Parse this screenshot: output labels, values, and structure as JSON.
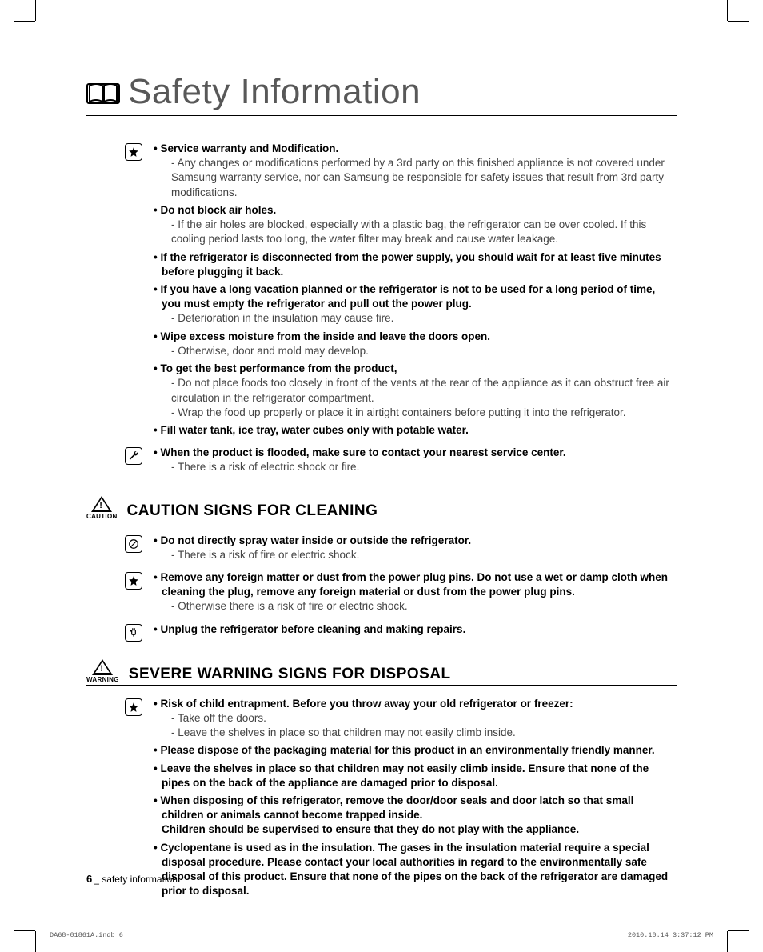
{
  "page": {
    "title": "Safety Information",
    "footer_num": "6",
    "footer_label": "_ safety information",
    "print_file": "DA68-01861A.indb   6",
    "print_time": "2010.10.14   3:37:12 PM"
  },
  "section1": {
    "items": [
      {
        "lead": "Service warranty and Modification.",
        "subs": [
          "- Any changes or modifications performed by a 3rd party on this finished appliance is not covered under Samsung warranty service, nor can Samsung be responsible for safety issues that result from 3rd party modifications."
        ]
      },
      {
        "lead": "Do not block air holes.",
        "subs": [
          "- If the air holes are blocked, especially with a plastic bag, the refrigerator can be over cooled. If this cooling period lasts too long, the water filter may break and cause water leakage."
        ]
      },
      {
        "lead": "If the refrigerator is disconnected from the power supply, you should wait for at least five minutes before plugging it back.",
        "subs": []
      },
      {
        "lead": "If you have a long vacation planned or the refrigerator is not to be used for a long period of time, you must empty the refrigerator and pull out the power plug.",
        "subs": [
          "- Deterioration in the insulation may cause fire."
        ]
      },
      {
        "lead": "Wipe excess moisture from the inside and leave the doors open.",
        "subs": [
          "- Otherwise, door and mold may develop."
        ]
      },
      {
        "lead": "To get the best performance from the product,",
        "subs": [
          "- Do not place foods too closely in front of the vents at the rear of the appliance as it can obstruct free air circulation in the refrigerator compartment.",
          "- Wrap the food up properly or place it in airtight containers before putting it into the refrigerator."
        ]
      },
      {
        "lead": "Fill water tank, ice tray, water cubes only with potable water.",
        "subs": []
      }
    ],
    "tool_item": {
      "lead": "When the product is flooded, make sure to contact your nearest service center.",
      "subs": [
        "- There is a risk of electric shock or fire."
      ]
    }
  },
  "section2": {
    "badge": "CAUTION",
    "heading": "CAUTION SIGNS FOR CLEANING",
    "b1": {
      "lead": "Do not directly spray water inside or outside the refrigerator.",
      "subs": [
        "- There is a risk of fire or electric shock."
      ]
    },
    "b2": {
      "lead": "Remove any foreign matter or dust from the power plug pins. Do not use a wet or damp cloth when cleaning the plug, remove any foreign material or dust from the power plug pins.",
      "subs": [
        "- Otherwise there is a risk of fire or electric shock."
      ]
    },
    "b3": {
      "lead": "Unplug the refrigerator before cleaning and making repairs.",
      "subs": []
    }
  },
  "section3": {
    "badge": "WARNING",
    "heading": "SEVERE WARNING SIGNS FOR DISPOSAL",
    "items": [
      {
        "lead": "Risk of child entrapment. Before you throw away your old refrigerator or freezer:",
        "subs": [
          "- Take off the doors.",
          "- Leave the shelves in place so that children may not easily climb inside."
        ],
        "nobold_lead": false
      },
      {
        "lead": "Please dispose of the packaging material for this product in an environmentally friendly manner.",
        "subs": []
      },
      {
        "lead": "Leave the shelves in place so that children may not easily climb inside. Ensure that none of the pipes on the back of the appliance are damaged prior to disposal.",
        "subs": []
      },
      {
        "lead": "When disposing of this refrigerator, remove the door/door seals and door latch so that small children or animals cannot become trapped inside.",
        "subs": [],
        "trail": "Children should be supervised to ensure that they do not play with the appliance."
      },
      {
        "lead": "Cyclopentane is used as in the insulation. The gases in the insulation material require a special disposal procedure. Please contact your local authorities in regard to the environmentally safe disposal of this product. Ensure that none of the pipes on the back of the refrigerator are damaged prior to disposal.",
        "subs": []
      }
    ]
  },
  "style": {
    "text_color": "#000000",
    "muted_color": "#444444",
    "title_color": "#585858",
    "title_fontsize": 44,
    "section_fontsize": 19,
    "body_fontsize": 13.5,
    "badge_fontsize": 8
  }
}
